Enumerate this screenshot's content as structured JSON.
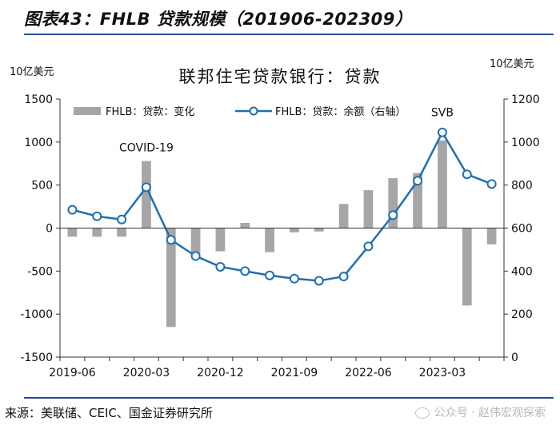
{
  "figure": {
    "title": "图表43：FHLB 贷款规模（201906-202309）",
    "source": "来源：美联储、CEIC、国金证券研究所",
    "watermark": "公众号 · 赵伟宏观探索"
  },
  "colors": {
    "bar": "#a6a6a6",
    "line": "#1f6fb2",
    "rule": "#2a4d8f",
    "marker_fill": "#ffffff"
  },
  "chart_data": {
    "type": "bar",
    "title": "联邦住宅贷款银行：贷款",
    "left_unit": "10亿美元",
    "right_unit": "10亿美元",
    "x_ticks": [
      "2019-06",
      "2020-03",
      "2020-12",
      "2021-09",
      "2022-06",
      "2023-03"
    ],
    "categories": [
      "2019-06",
      "2019-09",
      "2019-12",
      "2020-03",
      "2020-06",
      "2020-09",
      "2020-12",
      "2021-03",
      "2021-06",
      "2021-09",
      "2021-12",
      "2022-03",
      "2022-06",
      "2022-09",
      "2022-12",
      "2023-03",
      "2023-06",
      "2023-09"
    ],
    "left_axis": {
      "min": -1500,
      "max": 1500,
      "ticks": [
        "-1500",
        "-1000",
        "-500",
        "0",
        "500",
        "1000",
        "1500"
      ]
    },
    "right_axis": {
      "min": 0,
      "max": 1200,
      "ticks": [
        "0",
        "200",
        "400",
        "600",
        "800",
        "1000",
        "1200"
      ]
    },
    "series": [
      {
        "name": "FHLB：贷款：变化",
        "type": "bar",
        "axis": "left",
        "values": [
          -100,
          -100,
          -100,
          780,
          -1150,
          -300,
          -270,
          60,
          -280,
          -50,
          -40,
          280,
          440,
          580,
          640,
          1020,
          -900,
          -190
        ]
      },
      {
        "name": "FHLB：贷款：余额（右轴）",
        "type": "line",
        "axis": "right",
        "values": [
          685,
          655,
          640,
          790,
          545,
          470,
          420,
          400,
          380,
          365,
          355,
          375,
          515,
          660,
          820,
          1045,
          850,
          805
        ]
      }
    ],
    "annotations": [
      {
        "text": "COVID-19",
        "category": "2020-03",
        "series": 0
      },
      {
        "text": "SVB",
        "category": "2023-03",
        "series": 1
      }
    ],
    "legend_placement": "top-center"
  }
}
